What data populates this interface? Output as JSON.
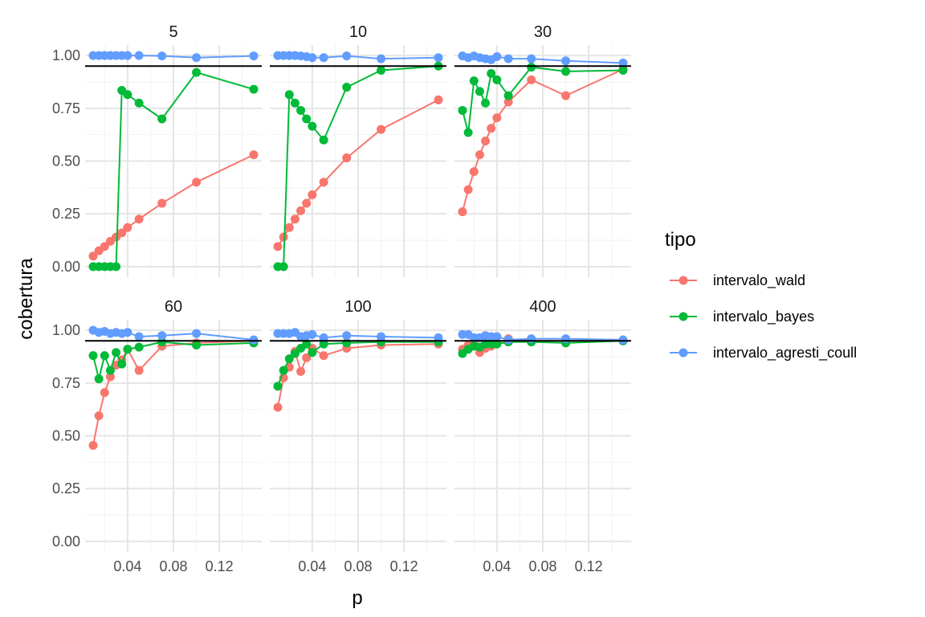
{
  "chart_data": {
    "type": "line",
    "xlabel": "p",
    "ylabel": "cobertura",
    "ylim": [
      0,
      1
    ],
    "xlim": [
      0.01,
      0.15
    ],
    "x_ticks": [
      {
        "value": 0.04,
        "label": "0.04"
      },
      {
        "value": 0.08,
        "label": "0.08"
      },
      {
        "value": 0.12,
        "label": "0.12"
      }
    ],
    "y_ticks": [
      {
        "value": 0,
        "label": "0.00"
      },
      {
        "value": 0.25,
        "label": "0.25"
      },
      {
        "value": 0.5,
        "label": "0.50"
      },
      {
        "value": 0.75,
        "label": "0.75"
      },
      {
        "value": 1,
        "label": "1.00"
      }
    ],
    "reference_line": 0.95,
    "grid": true,
    "legend": {
      "title": "tipo",
      "position": "right",
      "entries": [
        {
          "name": "intervalo_wald",
          "color": "#F8766D"
        },
        {
          "name": "intervalo_bayes",
          "color": "#00BA38"
        },
        {
          "name": "intervalo_agresti_coull",
          "color": "#619CFF"
        }
      ]
    },
    "x": [
      0.01,
      0.015,
      0.02,
      0.025,
      0.03,
      0.035,
      0.04,
      0.05,
      0.07,
      0.1,
      0.15
    ],
    "panels": [
      {
        "label": "5",
        "series": [
          {
            "name": "intervalo_wald",
            "values": [
              0.05,
              0.075,
              0.095,
              0.12,
              0.14,
              0.16,
              0.185,
              0.225,
              0.3,
              0.4,
              0.53
            ]
          },
          {
            "name": "intervalo_bayes",
            "values": [
              0.0,
              0.0,
              0.0,
              0.0,
              0.0,
              0.835,
              0.815,
              0.775,
              0.7,
              0.92,
              0.84
            ]
          },
          {
            "name": "intervalo_agresti_coull",
            "values": [
              1.0,
              1.0,
              1.0,
              1.0,
              1.0,
              1.0,
              1.0,
              1.0,
              0.998,
              0.99,
              0.998
            ]
          }
        ]
      },
      {
        "label": "10",
        "series": [
          {
            "name": "intervalo_wald",
            "values": [
              0.095,
              0.14,
              0.185,
              0.225,
              0.265,
              0.3,
              0.34,
              0.4,
              0.515,
              0.65,
              0.79
            ]
          },
          {
            "name": "intervalo_bayes",
            "values": [
              0.0,
              0.0,
              0.815,
              0.775,
              0.74,
              0.7,
              0.665,
              0.6,
              0.85,
              0.93,
              0.95
            ]
          },
          {
            "name": "intervalo_agresti_coull",
            "values": [
              1.0,
              1.0,
              1.0,
              1.0,
              0.998,
              0.995,
              0.99,
              0.99,
              0.998,
              0.985,
              0.99
            ]
          }
        ]
      },
      {
        "label": "30",
        "series": [
          {
            "name": "intervalo_wald",
            "values": [
              0.26,
              0.365,
              0.45,
              0.53,
              0.595,
              0.655,
              0.705,
              0.78,
              0.885,
              0.81,
              0.935
            ]
          },
          {
            "name": "intervalo_bayes",
            "values": [
              0.74,
              0.635,
              0.88,
              0.83,
              0.775,
              0.915,
              0.885,
              0.81,
              0.945,
              0.925,
              0.93
            ]
          },
          {
            "name": "intervalo_agresti_coull",
            "values": [
              0.998,
              0.99,
              0.998,
              0.99,
              0.985,
              0.98,
              0.995,
              0.985,
              0.985,
              0.975,
              0.965
            ]
          }
        ]
      },
      {
        "label": "60",
        "series": [
          {
            "name": "intervalo_wald",
            "values": [
              0.455,
              0.595,
              0.705,
              0.78,
              0.835,
              0.86,
              0.91,
              0.81,
              0.925,
              0.94,
              0.95
            ]
          },
          {
            "name": "intervalo_bayes",
            "values": [
              0.88,
              0.77,
              0.88,
              0.81,
              0.895,
              0.84,
              0.91,
              0.92,
              0.945,
              0.93,
              0.94
            ]
          },
          {
            "name": "intervalo_agresti_coull",
            "values": [
              1.0,
              0.99,
              0.995,
              0.985,
              0.99,
              0.985,
              0.99,
              0.97,
              0.975,
              0.985,
              0.955
            ]
          }
        ]
      },
      {
        "label": "100",
        "series": [
          {
            "name": "intervalo_wald",
            "values": [
              0.635,
              0.775,
              0.825,
              0.9,
              0.805,
              0.87,
              0.915,
              0.88,
              0.915,
              0.93,
              0.935
            ]
          },
          {
            "name": "intervalo_bayes",
            "values": [
              0.735,
              0.81,
              0.865,
              0.89,
              0.915,
              0.935,
              0.895,
              0.935,
              0.94,
              0.945,
              0.945
            ]
          },
          {
            "name": "intervalo_agresti_coull",
            "values": [
              0.985,
              0.985,
              0.985,
              0.99,
              0.97,
              0.975,
              0.98,
              0.965,
              0.975,
              0.97,
              0.965
            ]
          }
        ]
      },
      {
        "label": "400",
        "series": [
          {
            "name": "intervalo_wald",
            "values": [
              0.91,
              0.93,
              0.945,
              0.895,
              0.915,
              0.925,
              0.94,
              0.96,
              0.95,
              0.95,
              0.95
            ]
          },
          {
            "name": "intervalo_bayes",
            "values": [
              0.89,
              0.91,
              0.925,
              0.92,
              0.935,
              0.935,
              0.935,
              0.945,
              0.945,
              0.94,
              0.95
            ]
          },
          {
            "name": "intervalo_agresti_coull",
            "values": [
              0.98,
              0.98,
              0.965,
              0.965,
              0.975,
              0.97,
              0.97,
              0.955,
              0.96,
              0.96,
              0.955
            ]
          }
        ]
      }
    ]
  }
}
